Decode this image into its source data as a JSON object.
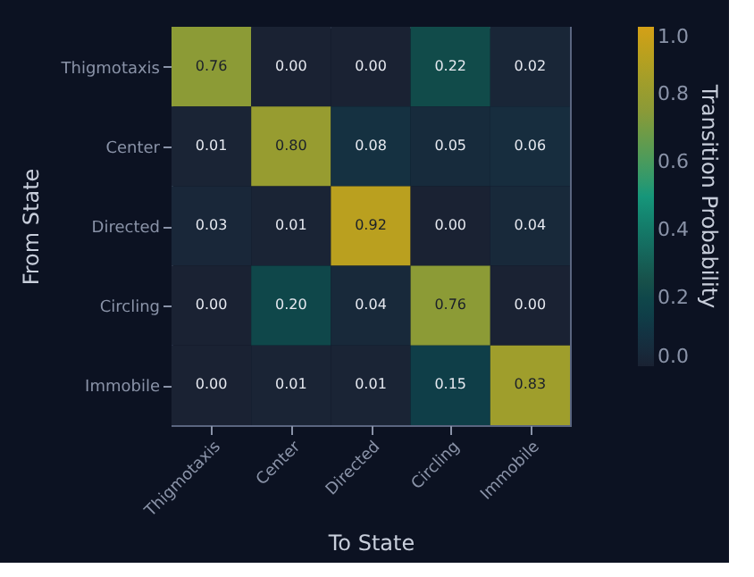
{
  "chart_data": {
    "type": "heatmap",
    "xlabel": "To State",
    "ylabel": "From State",
    "clabel": "Transition Probability",
    "categories": [
      "Thigmotaxis",
      "Center",
      "Directed",
      "Circling",
      "Immobile"
    ],
    "y_categories": [
      "Thigmotaxis",
      "Center",
      "Directed",
      "Circling",
      "Immobile"
    ],
    "cells": [
      [
        0.76,
        0.0,
        0.0,
        0.22,
        0.02
      ],
      [
        0.01,
        0.8,
        0.08,
        0.05,
        0.06
      ],
      [
        0.03,
        0.01,
        0.92,
        0.0,
        0.04
      ],
      [
        0.0,
        0.2,
        0.04,
        0.76,
        0.0
      ],
      [
        0.0,
        0.01,
        0.01,
        0.15,
        0.83
      ]
    ],
    "cell_labels": [
      [
        "0.76",
        "0.00",
        "0.00",
        "0.22",
        "0.02"
      ],
      [
        "0.01",
        "0.80",
        "0.08",
        "0.05",
        "0.06"
      ],
      [
        "0.03",
        "0.01",
        "0.92",
        "0.00",
        "0.04"
      ],
      [
        "0.00",
        "0.20",
        "0.04",
        "0.76",
        "0.00"
      ],
      [
        "0.00",
        "0.01",
        "0.01",
        "0.15",
        "0.83"
      ]
    ],
    "clim": [
      0,
      1
    ],
    "cticks": [
      {
        "value": 0,
        "label": "0.0"
      },
      {
        "value": 0.2,
        "label": "0.2"
      },
      {
        "value": 0.4,
        "label": "0.4"
      },
      {
        "value": 0.6,
        "label": "0.6"
      },
      {
        "value": 0.8,
        "label": "0.8"
      },
      {
        "value": 1,
        "label": "1.0"
      }
    ]
  }
}
